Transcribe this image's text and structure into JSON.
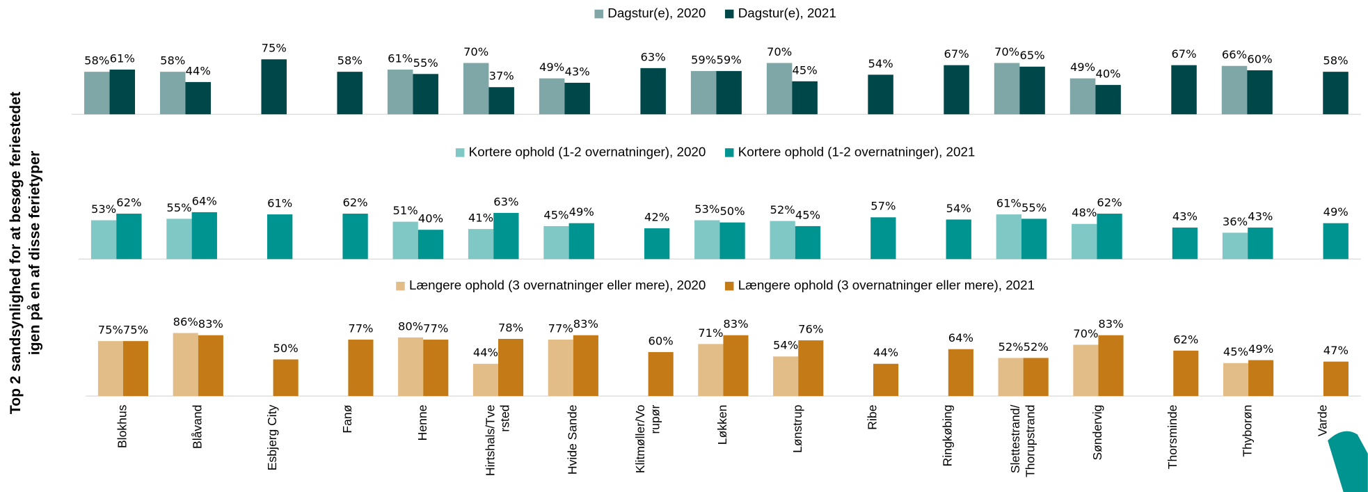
{
  "y_label": "Top 2 sandsynlighed for at besøge feriestedet\nigen på en af disse ferietyper",
  "chart_data": [
    {
      "type": "bar",
      "ylim": [
        0,
        100
      ],
      "series": [
        {
          "name": "Dagstur(e), 2020",
          "color": "#7fa7a7",
          "values": [
            58,
            58,
            null,
            null,
            61,
            70,
            49,
            null,
            59,
            70,
            null,
            null,
            70,
            49,
            null,
            66,
            null
          ],
          "value_labels": [
            "58%",
            "58%",
            null,
            null,
            "61%",
            "70%",
            "49%",
            null,
            "59%",
            "70%",
            null,
            null,
            "70%",
            "49%",
            null,
            "66%",
            null
          ]
        },
        {
          "name": "Dagstur(e), 2021",
          "color": "#00474a",
          "values": [
            61,
            44,
            75,
            58,
            55,
            37,
            43,
            63,
            59,
            45,
            54,
            67,
            65,
            40,
            67,
            60,
            58
          ],
          "value_labels": [
            "61%",
            "44%",
            "75%",
            "58%",
            "55%",
            "37%",
            "43%",
            "63%",
            "59%",
            "45%",
            "54%",
            "67%",
            "65%",
            "40%",
            "67%",
            "60%",
            "58%"
          ]
        }
      ]
    },
    {
      "type": "bar",
      "ylim": [
        0,
        100
      ],
      "series": [
        {
          "name": "Kortere ophold (1-2 overnatninger), 2020",
          "color": "#80c8c6",
          "values": [
            53,
            55,
            null,
            null,
            51,
            41,
            45,
            null,
            53,
            52,
            null,
            null,
            61,
            48,
            null,
            36,
            null
          ],
          "value_labels": [
            "53%",
            "55%",
            null,
            null,
            "51%",
            "41%",
            "45%",
            null,
            "53%",
            "52%",
            null,
            null,
            "61%",
            "48%",
            null,
            "36%",
            null
          ]
        },
        {
          "name": "Kortere ophold (1-2 overnatninger), 2021",
          "color": "#009490",
          "values": [
            62,
            64,
            61,
            62,
            40,
            63,
            49,
            42,
            50,
            45,
            57,
            54,
            55,
            62,
            43,
            43,
            49
          ],
          "value_labels": [
            "62%",
            "64%",
            "61%",
            "62%",
            "40%",
            "63%",
            "49%",
            "42%",
            "50%",
            "45%",
            "57%",
            "54%",
            "55%",
            "62%",
            "43%",
            "43%",
            "49%"
          ]
        }
      ]
    },
    {
      "type": "bar",
      "ylim": [
        0,
        100
      ],
      "categories": [
        "Blokhus",
        "Blåvand",
        "Esbjerg City",
        "Fanø",
        "Henne",
        "Hirtshals/Tve\nrsted",
        "Hvide Sande",
        "Klitmøller/Vo\nrupør",
        "Løkken",
        "Lønstrup",
        "Ribe",
        "Ringkøbing",
        "Slettestrand/\nThorupstrand",
        "Søndervig",
        "Thorsminde",
        "Thyborøn",
        "Varde"
      ],
      "series": [
        {
          "name": "Længere ophold (3 overnatninger eller mere), 2020",
          "color": "#e3bd87",
          "values": [
            75,
            86,
            null,
            null,
            80,
            44,
            77,
            null,
            71,
            54,
            null,
            null,
            52,
            70,
            null,
            45,
            null
          ],
          "value_labels": [
            "75%",
            "86%",
            null,
            null,
            "80%",
            "44%",
            "77%",
            null,
            "71%",
            "54%",
            null,
            null,
            "52%",
            "70%",
            null,
            "45%",
            null
          ]
        },
        {
          "name": "Længere ophold (3 overnatninger eller mere), 2021",
          "color": "#c47a17",
          "values": [
            75,
            83,
            50,
            77,
            77,
            78,
            83,
            60,
            83,
            76,
            44,
            64,
            52,
            83,
            62,
            49,
            47
          ],
          "value_labels": [
            "75%",
            "83%",
            "50%",
            "77%",
            "77%",
            "78%",
            "83%",
            "60%",
            "83%",
            "76%",
            "44%",
            "64%",
            "52%",
            "83%",
            "62%",
            "49%",
            "47%"
          ]
        }
      ]
    }
  ]
}
